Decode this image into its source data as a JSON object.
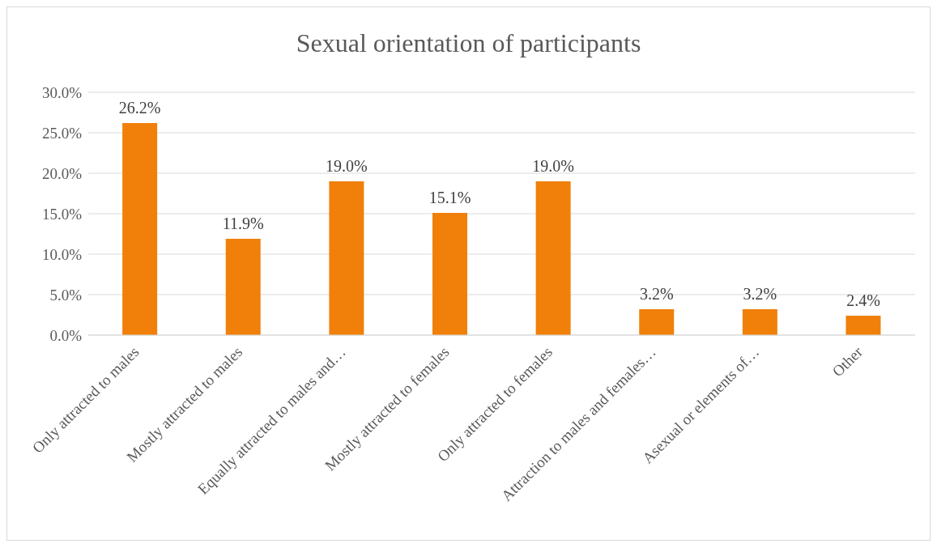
{
  "chart_data": {
    "type": "bar",
    "title": "Sexual orientation of participants",
    "categories": [
      "Only attracted to males",
      "Mostly attracted to males",
      "Equally attracted to males and…",
      "Mostly attracted to females",
      "Only attracted to females",
      "Attraction to males and females…",
      "Asexual or elements of…",
      "Other"
    ],
    "values": [
      26.2,
      11.9,
      19.0,
      15.1,
      19.0,
      3.2,
      3.2,
      2.4
    ],
    "value_labels": [
      "26.2%",
      "11.9%",
      "19.0%",
      "15.1%",
      "19.0%",
      "3.2%",
      "3.2%",
      "2.4%"
    ],
    "color": "#f0800a",
    "ylim": [
      0,
      30
    ],
    "yticks": [
      {
        "value": 0,
        "label": "0.0%"
      },
      {
        "value": 5,
        "label": "5.0%"
      },
      {
        "value": 10,
        "label": "10.0%"
      },
      {
        "value": 15,
        "label": "15.0%"
      },
      {
        "value": 20,
        "label": "20.0%"
      },
      {
        "value": 25,
        "label": "25.0%"
      },
      {
        "value": 30,
        "label": "30.0%"
      }
    ],
    "grid": "y"
  }
}
